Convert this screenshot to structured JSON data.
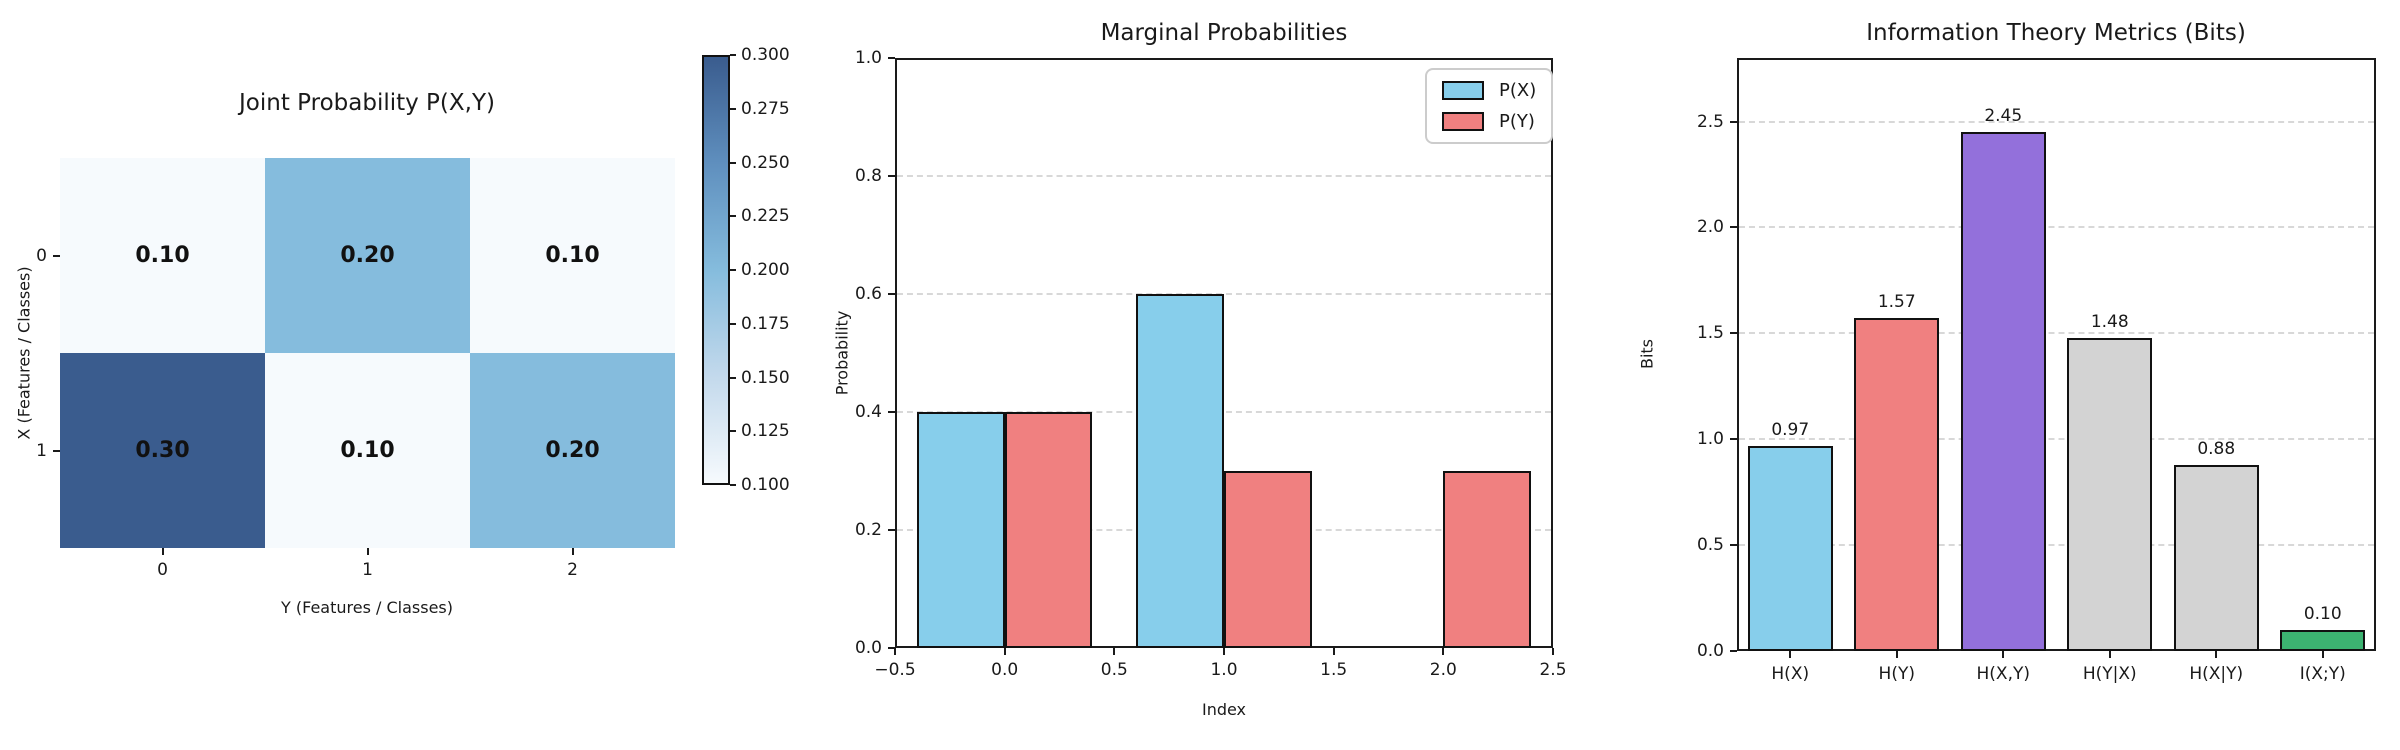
{
  "chart_data": [
    {
      "type": "heatmap",
      "title": "Joint Probability P(X,Y)",
      "xlabel": "Y (Features / Classes)",
      "ylabel": "X (Features / Classes)",
      "x_ticks": [
        "0",
        "1",
        "2"
      ],
      "y_ticks": [
        "0",
        "1"
      ],
      "values": [
        [
          0.1,
          0.2,
          0.1
        ],
        [
          0.3,
          0.1,
          0.2
        ]
      ],
      "cell_labels": [
        [
          "0.10",
          "0.20",
          "0.10"
        ],
        [
          "0.30",
          "0.10",
          "0.20"
        ]
      ],
      "cell_colors": [
        [
          "#f6fafd",
          "#85bcdd",
          "#f6fafd"
        ],
        [
          "#3a5c8e",
          "#f6fafd",
          "#85bcdd"
        ]
      ],
      "colormap": "Blues",
      "colorbar": {
        "vmin": 0.1,
        "vmax": 0.3,
        "tick_labels": [
          "0.300",
          "0.275",
          "0.250",
          "0.225",
          "0.200",
          "0.175",
          "0.150",
          "0.125",
          "0.100"
        ],
        "tick_values": [
          0.3,
          0.275,
          0.25,
          0.225,
          0.2,
          0.175,
          0.15,
          0.125,
          0.1
        ],
        "top_color": "#3a5c8e",
        "mid_color": "#85bcdd",
        "bottom_color": "#f6fafd"
      }
    },
    {
      "type": "bar",
      "title": "Marginal Probabilities",
      "xlabel": "Index",
      "ylabel": "Probability",
      "xlim": [
        -0.5,
        2.5
      ],
      "ylim": [
        0,
        1.0
      ],
      "x_tick_labels": [
        "−0.5",
        "0.0",
        "0.5",
        "1.0",
        "1.5",
        "2.0",
        "2.5"
      ],
      "x_tick_values": [
        -0.5,
        0.0,
        0.5,
        1.0,
        1.5,
        2.0,
        2.5
      ],
      "y_tick_labels": [
        "0.0",
        "0.2",
        "0.4",
        "0.6",
        "0.8",
        "1.0"
      ],
      "y_tick_values": [
        0.0,
        0.2,
        0.4,
        0.6,
        0.8,
        1.0
      ],
      "grid_values": [
        0.2,
        0.4,
        0.6,
        0.8
      ],
      "bar_width": 0.4,
      "grid": true,
      "legend_position": "upper right",
      "series": [
        {
          "name": "P(X)",
          "color": "#87ceeb",
          "values": [
            0.4,
            0.6
          ]
        },
        {
          "name": "P(Y)",
          "color": "#f08080",
          "values": [
            0.4,
            0.3,
            0.3
          ]
        }
      ]
    },
    {
      "type": "bar",
      "title": "Information Theory Metrics (Bits)",
      "xlabel": "",
      "ylabel": "Bits",
      "categories": [
        "H(X)",
        "H(Y)",
        "H(X,Y)",
        "H(Y|X)",
        "H(X|Y)",
        "I(X;Y)"
      ],
      "values": [
        0.97,
        1.57,
        2.45,
        1.48,
        0.88,
        0.1
      ],
      "value_labels": [
        "0.97",
        "1.57",
        "2.45",
        "1.48",
        "0.88",
        "0.10"
      ],
      "colors": [
        "#87ceeb",
        "#f08080",
        "#9370db",
        "#d3d3d3",
        "#d3d3d3",
        "#3cb371"
      ],
      "ylim": [
        0,
        2.8
      ],
      "y_tick_labels": [
        "0.0",
        "0.5",
        "1.0",
        "1.5",
        "2.0",
        "2.5"
      ],
      "y_tick_values": [
        0.0,
        0.5,
        1.0,
        1.5,
        2.0,
        2.5
      ],
      "grid_values": [
        0.5,
        1.0,
        1.5,
        2.0,
        2.5
      ],
      "grid": true
    }
  ]
}
